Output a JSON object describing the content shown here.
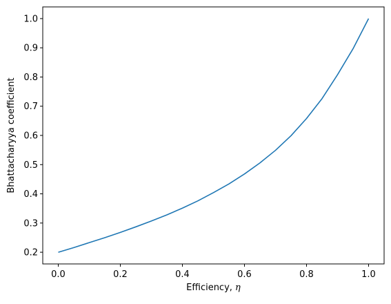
{
  "chart_data": {
    "type": "line",
    "title": "",
    "xlabel_prefix": "Efficiency, ",
    "xlabel_symbol": "η",
    "ylabel": "Bhattacharyya coefficient",
    "xlim": [
      -0.05,
      1.05
    ],
    "ylim": [
      0.16,
      1.04
    ],
    "grid": false,
    "line_color": "#1f77b4",
    "x_ticks": [
      {
        "value": 0.0,
        "label": "0.0"
      },
      {
        "value": 0.2,
        "label": "0.2"
      },
      {
        "value": 0.4,
        "label": "0.4"
      },
      {
        "value": 0.6,
        "label": "0.6"
      },
      {
        "value": 0.8,
        "label": "0.8"
      },
      {
        "value": 1.0,
        "label": "1.0"
      }
    ],
    "y_ticks": [
      {
        "value": 0.2,
        "label": "0.2"
      },
      {
        "value": 0.3,
        "label": "0.3"
      },
      {
        "value": 0.4,
        "label": "0.4"
      },
      {
        "value": 0.5,
        "label": "0.5"
      },
      {
        "value": 0.6,
        "label": "0.6"
      },
      {
        "value": 0.7,
        "label": "0.7"
      },
      {
        "value": 0.8,
        "label": "0.8"
      },
      {
        "value": 0.9,
        "label": "0.9"
      },
      {
        "value": 1.0,
        "label": "1.0"
      }
    ],
    "series": [
      {
        "x": [
          0.0,
          0.05,
          0.1,
          0.15,
          0.2,
          0.25,
          0.3,
          0.35,
          0.4,
          0.45,
          0.5,
          0.55,
          0.6,
          0.65,
          0.7,
          0.75,
          0.8,
          0.85,
          0.9,
          0.95,
          1.0
        ],
        "y": [
          0.2,
          0.216,
          0.233,
          0.25,
          0.268,
          0.287,
          0.307,
          0.328,
          0.351,
          0.376,
          0.404,
          0.434,
          0.468,
          0.506,
          0.549,
          0.599,
          0.658,
          0.726,
          0.808,
          0.897,
          1.0
        ]
      }
    ]
  }
}
